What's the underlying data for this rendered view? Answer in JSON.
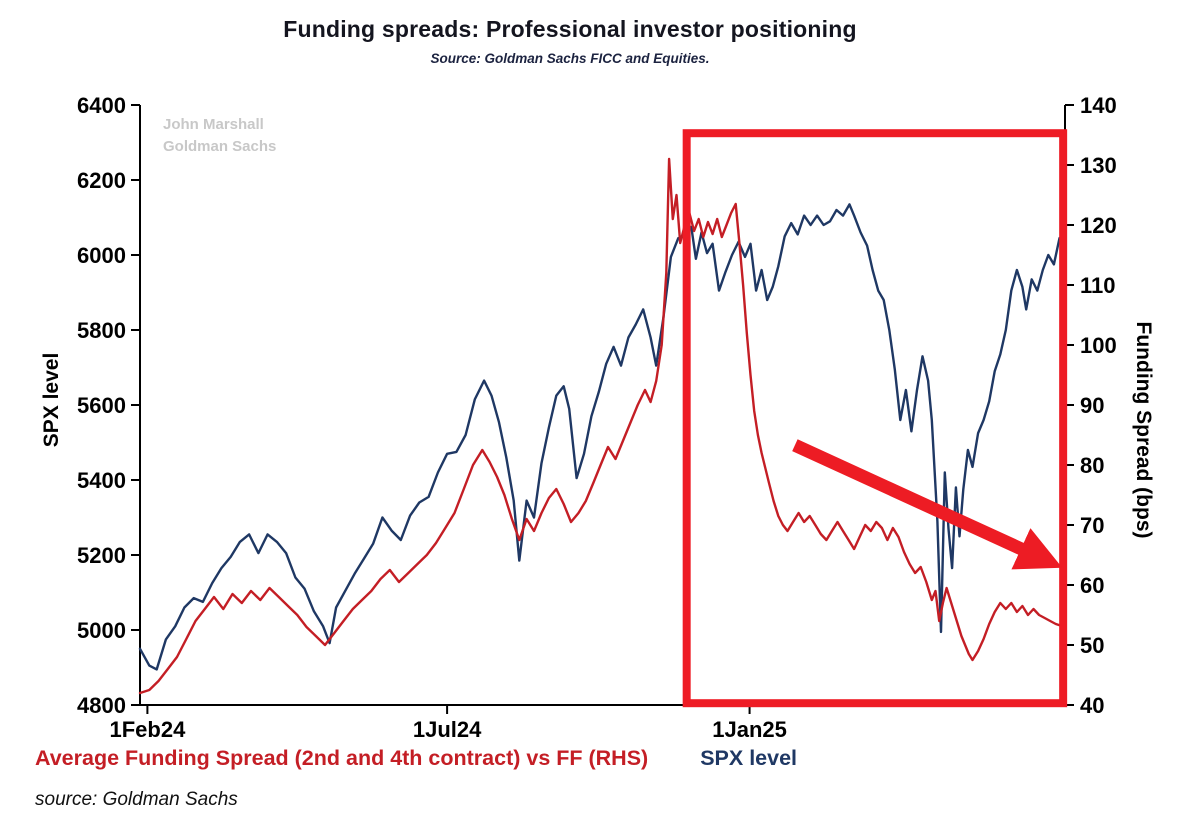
{
  "title": "Funding spreads: Professional investor positioning",
  "subtitle": "Source: Goldman Sachs FICC and Equities.",
  "watermark": {
    "line1": "John Marshall",
    "line2": "Goldman Sachs"
  },
  "footer": "source: Goldman Sachs",
  "legend": [
    {
      "label": "Average Funding Spread (2nd and 4th contract) vs FF (RHS)",
      "color": "#c41e25"
    },
    {
      "label": "SPX level",
      "color": "#1f3864"
    }
  ],
  "chart_data": {
    "type": "line",
    "title": "Funding spreads: Professional investor positioning",
    "subtitle": "Source: Goldman Sachs FICC and Equities.",
    "grid": false,
    "left_axis": {
      "label": "SPX level",
      "min": 4800,
      "max": 6400,
      "ticks": [
        6400,
        6200,
        6000,
        5800,
        5600,
        5400,
        5200,
        5000,
        4800
      ]
    },
    "right_axis": {
      "label": "Funding Spread (bps)",
      "min": 40,
      "max": 140,
      "ticks": [
        140,
        130,
        120,
        110,
        100,
        90,
        80,
        70,
        60,
        50,
        40
      ]
    },
    "x_axis": {
      "ticks": [
        {
          "label": "1Feb24",
          "frac": 0.008
        },
        {
          "label": "1Jul24",
          "frac": 0.332
        },
        {
          "label": "1Jan25",
          "frac": 0.659
        }
      ]
    },
    "series": [
      {
        "name": "SPX level",
        "axis": "left",
        "color": "#1f3864",
        "width": 2.4,
        "points": [
          [
            0.0,
            4950
          ],
          [
            0.01,
            4905
          ],
          [
            0.018,
            4895
          ],
          [
            0.028,
            4975
          ],
          [
            0.038,
            5010
          ],
          [
            0.048,
            5060
          ],
          [
            0.058,
            5085
          ],
          [
            0.068,
            5075
          ],
          [
            0.078,
            5125
          ],
          [
            0.088,
            5165
          ],
          [
            0.098,
            5195
          ],
          [
            0.108,
            5235
          ],
          [
            0.118,
            5255
          ],
          [
            0.128,
            5205
          ],
          [
            0.138,
            5255
          ],
          [
            0.148,
            5235
          ],
          [
            0.158,
            5205
          ],
          [
            0.168,
            5140
          ],
          [
            0.178,
            5110
          ],
          [
            0.188,
            5050
          ],
          [
            0.198,
            5010
          ],
          [
            0.205,
            4965
          ],
          [
            0.212,
            5060
          ],
          [
            0.222,
            5105
          ],
          [
            0.232,
            5150
          ],
          [
            0.242,
            5190
          ],
          [
            0.252,
            5230
          ],
          [
            0.262,
            5300
          ],
          [
            0.272,
            5265
          ],
          [
            0.282,
            5240
          ],
          [
            0.292,
            5305
          ],
          [
            0.302,
            5340
          ],
          [
            0.312,
            5355
          ],
          [
            0.322,
            5420
          ],
          [
            0.332,
            5470
          ],
          [
            0.342,
            5475
          ],
          [
            0.352,
            5520
          ],
          [
            0.362,
            5615
          ],
          [
            0.372,
            5665
          ],
          [
            0.38,
            5625
          ],
          [
            0.388,
            5555
          ],
          [
            0.396,
            5460
          ],
          [
            0.404,
            5345
          ],
          [
            0.41,
            5185
          ],
          [
            0.418,
            5345
          ],
          [
            0.426,
            5300
          ],
          [
            0.434,
            5445
          ],
          [
            0.442,
            5540
          ],
          [
            0.45,
            5625
          ],
          [
            0.458,
            5650
          ],
          [
            0.464,
            5590
          ],
          [
            0.472,
            5405
          ],
          [
            0.48,
            5470
          ],
          [
            0.488,
            5570
          ],
          [
            0.496,
            5635
          ],
          [
            0.504,
            5710
          ],
          [
            0.512,
            5755
          ],
          [
            0.52,
            5705
          ],
          [
            0.528,
            5780
          ],
          [
            0.536,
            5815
          ],
          [
            0.544,
            5855
          ],
          [
            0.552,
            5780
          ],
          [
            0.558,
            5705
          ],
          [
            0.566,
            5835
          ],
          [
            0.574,
            5995
          ],
          [
            0.582,
            6045
          ],
          [
            0.589,
            6050
          ],
          [
            0.596,
            6075
          ],
          [
            0.601,
            5990
          ],
          [
            0.607,
            6060
          ],
          [
            0.613,
            6005
          ],
          [
            0.619,
            6030
          ],
          [
            0.626,
            5905
          ],
          [
            0.633,
            5955
          ],
          [
            0.64,
            6000
          ],
          [
            0.647,
            6035
          ],
          [
            0.654,
            5995
          ],
          [
            0.66,
            6030
          ],
          [
            0.666,
            5905
          ],
          [
            0.672,
            5960
          ],
          [
            0.678,
            5880
          ],
          [
            0.684,
            5915
          ],
          [
            0.69,
            5970
          ],
          [
            0.697,
            6050
          ],
          [
            0.704,
            6085
          ],
          [
            0.711,
            6055
          ],
          [
            0.718,
            6105
          ],
          [
            0.725,
            6080
          ],
          [
            0.732,
            6105
          ],
          [
            0.739,
            6080
          ],
          [
            0.746,
            6090
          ],
          [
            0.753,
            6120
          ],
          [
            0.76,
            6105
          ],
          [
            0.767,
            6135
          ],
          [
            0.772,
            6105
          ],
          [
            0.779,
            6060
          ],
          [
            0.786,
            6025
          ],
          [
            0.792,
            5960
          ],
          [
            0.798,
            5905
          ],
          [
            0.804,
            5880
          ],
          [
            0.81,
            5800
          ],
          [
            0.816,
            5695
          ],
          [
            0.822,
            5560
          ],
          [
            0.828,
            5640
          ],
          [
            0.834,
            5530
          ],
          [
            0.84,
            5640
          ],
          [
            0.846,
            5730
          ],
          [
            0.852,
            5665
          ],
          [
            0.856,
            5560
          ],
          [
            0.862,
            5290
          ],
          [
            0.866,
            4995
          ],
          [
            0.87,
            5420
          ],
          [
            0.874,
            5270
          ],
          [
            0.878,
            5165
          ],
          [
            0.882,
            5380
          ],
          [
            0.886,
            5250
          ],
          [
            0.89,
            5375
          ],
          [
            0.895,
            5480
          ],
          [
            0.9,
            5435
          ],
          [
            0.906,
            5525
          ],
          [
            0.912,
            5560
          ],
          [
            0.918,
            5610
          ],
          [
            0.924,
            5690
          ],
          [
            0.93,
            5735
          ],
          [
            0.936,
            5800
          ],
          [
            0.942,
            5905
          ],
          [
            0.948,
            5960
          ],
          [
            0.954,
            5915
          ],
          [
            0.958,
            5855
          ],
          [
            0.964,
            5935
          ],
          [
            0.97,
            5905
          ],
          [
            0.976,
            5960
          ],
          [
            0.982,
            6000
          ],
          [
            0.988,
            5975
          ],
          [
            0.994,
            6045
          ],
          [
            1.0,
            6020
          ]
        ]
      },
      {
        "name": "Average Funding Spread (2nd and 4th contract) vs FF",
        "axis": "right",
        "color": "#c41e25",
        "width": 2.4,
        "points": [
          [
            0.0,
            42
          ],
          [
            0.01,
            42.5
          ],
          [
            0.02,
            44
          ],
          [
            0.03,
            46
          ],
          [
            0.04,
            48
          ],
          [
            0.05,
            51
          ],
          [
            0.06,
            54
          ],
          [
            0.07,
            56
          ],
          [
            0.08,
            58
          ],
          [
            0.09,
            56
          ],
          [
            0.1,
            58.5
          ],
          [
            0.11,
            57
          ],
          [
            0.12,
            59
          ],
          [
            0.13,
            57.5
          ],
          [
            0.14,
            59.5
          ],
          [
            0.15,
            58
          ],
          [
            0.16,
            56.5
          ],
          [
            0.17,
            55
          ],
          [
            0.18,
            53
          ],
          [
            0.19,
            51.5
          ],
          [
            0.2,
            50
          ],
          [
            0.21,
            52
          ],
          [
            0.22,
            54
          ],
          [
            0.23,
            56
          ],
          [
            0.24,
            57.5
          ],
          [
            0.25,
            59
          ],
          [
            0.26,
            61
          ],
          [
            0.27,
            62.5
          ],
          [
            0.28,
            60.5
          ],
          [
            0.29,
            62
          ],
          [
            0.3,
            63.5
          ],
          [
            0.31,
            65
          ],
          [
            0.32,
            67
          ],
          [
            0.33,
            69.5
          ],
          [
            0.34,
            72
          ],
          [
            0.35,
            76
          ],
          [
            0.36,
            80
          ],
          [
            0.37,
            82.5
          ],
          [
            0.378,
            80.5
          ],
          [
            0.386,
            78
          ],
          [
            0.394,
            75
          ],
          [
            0.402,
            71
          ],
          [
            0.41,
            67.5
          ],
          [
            0.418,
            71
          ],
          [
            0.426,
            69
          ],
          [
            0.434,
            72
          ],
          [
            0.442,
            74.5
          ],
          [
            0.45,
            76
          ],
          [
            0.458,
            73.5
          ],
          [
            0.466,
            70.5
          ],
          [
            0.474,
            72
          ],
          [
            0.482,
            74
          ],
          [
            0.49,
            77
          ],
          [
            0.498,
            80
          ],
          [
            0.506,
            83
          ],
          [
            0.514,
            81
          ],
          [
            0.522,
            84
          ],
          [
            0.53,
            87
          ],
          [
            0.538,
            90
          ],
          [
            0.546,
            92.5
          ],
          [
            0.552,
            90.5
          ],
          [
            0.558,
            94
          ],
          [
            0.564,
            100
          ],
          [
            0.569,
            112
          ],
          [
            0.572,
            131
          ],
          [
            0.576,
            121
          ],
          [
            0.58,
            125
          ],
          [
            0.584,
            117
          ],
          [
            0.589,
            120
          ],
          [
            0.594,
            122
          ],
          [
            0.599,
            119
          ],
          [
            0.604,
            121
          ],
          [
            0.609,
            118
          ],
          [
            0.614,
            120.5
          ],
          [
            0.619,
            118.5
          ],
          [
            0.624,
            121
          ],
          [
            0.629,
            118
          ],
          [
            0.634,
            120
          ],
          [
            0.639,
            122
          ],
          [
            0.644,
            123.5
          ],
          [
            0.648,
            117
          ],
          [
            0.652,
            110
          ],
          [
            0.656,
            102
          ],
          [
            0.66,
            95
          ],
          [
            0.664,
            89
          ],
          [
            0.668,
            85
          ],
          [
            0.672,
            82
          ],
          [
            0.676,
            79.5
          ],
          [
            0.68,
            77
          ],
          [
            0.685,
            74
          ],
          [
            0.69,
            71.5
          ],
          [
            0.695,
            70
          ],
          [
            0.7,
            69
          ],
          [
            0.706,
            70.5
          ],
          [
            0.712,
            72
          ],
          [
            0.718,
            70.5
          ],
          [
            0.724,
            71.5
          ],
          [
            0.73,
            70
          ],
          [
            0.736,
            68.5
          ],
          [
            0.742,
            67.5
          ],
          [
            0.748,
            69
          ],
          [
            0.754,
            70.5
          ],
          [
            0.76,
            69
          ],
          [
            0.766,
            67.5
          ],
          [
            0.772,
            66
          ],
          [
            0.778,
            68
          ],
          [
            0.784,
            70
          ],
          [
            0.79,
            69
          ],
          [
            0.796,
            70.5
          ],
          [
            0.802,
            69.5
          ],
          [
            0.808,
            67.5
          ],
          [
            0.814,
            69.5
          ],
          [
            0.82,
            68
          ],
          [
            0.826,
            65.5
          ],
          [
            0.832,
            63.5
          ],
          [
            0.838,
            62
          ],
          [
            0.844,
            63
          ],
          [
            0.85,
            60.5
          ],
          [
            0.856,
            57.5
          ],
          [
            0.86,
            59
          ],
          [
            0.864,
            54
          ],
          [
            0.868,
            57
          ],
          [
            0.872,
            59.5
          ],
          [
            0.876,
            57.5
          ],
          [
            0.88,
            55.5
          ],
          [
            0.884,
            53.5
          ],
          [
            0.888,
            51.5
          ],
          [
            0.892,
            50
          ],
          [
            0.896,
            48.5
          ],
          [
            0.9,
            47.5
          ],
          [
            0.906,
            49
          ],
          [
            0.912,
            51
          ],
          [
            0.918,
            53.5
          ],
          [
            0.924,
            55.5
          ],
          [
            0.93,
            57
          ],
          [
            0.936,
            56
          ],
          [
            0.942,
            57
          ],
          [
            0.948,
            55.5
          ],
          [
            0.954,
            56.5
          ],
          [
            0.96,
            55
          ],
          [
            0.966,
            56
          ],
          [
            0.972,
            55
          ],
          [
            0.978,
            54.5
          ],
          [
            0.984,
            54
          ],
          [
            0.99,
            53.5
          ],
          [
            1.0,
            53
          ]
        ]
      }
    ],
    "annotations": {
      "highlight_box": {
        "x0": 0.591,
        "x1": 0.998,
        "y0": 0.047,
        "y1": 0.997,
        "color": "#ee1c25",
        "stroke_width": 8
      },
      "arrow": {
        "x0": 0.708,
        "y0": 0.567,
        "x1": 0.96,
        "y1": 0.745,
        "color": "#ed1c24",
        "stroke_width": 13
      }
    }
  }
}
